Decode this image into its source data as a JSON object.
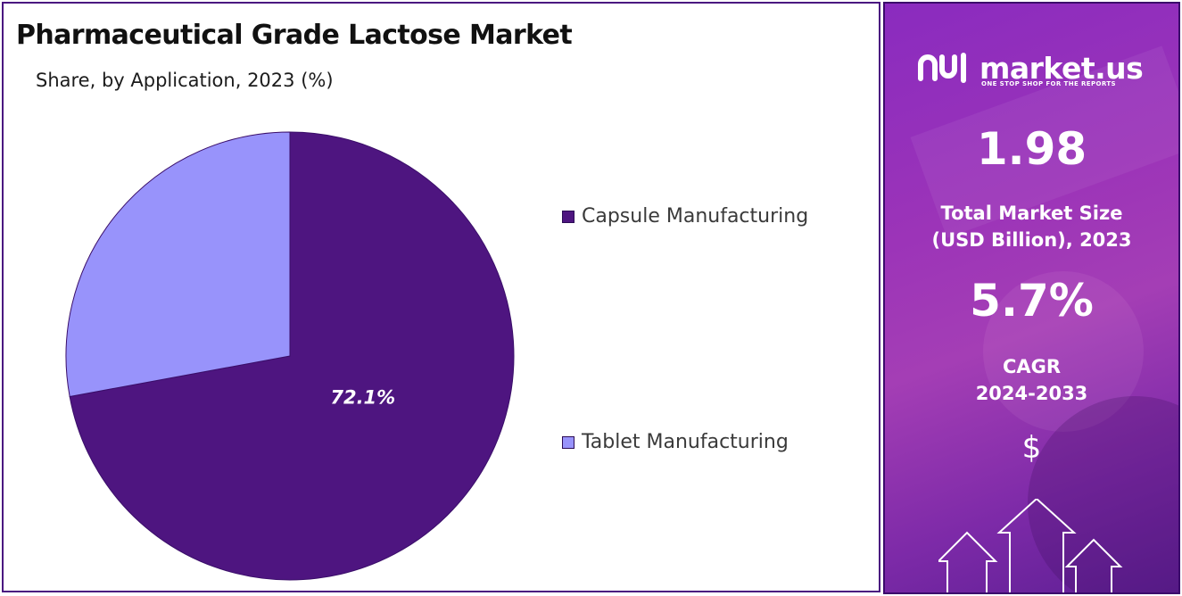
{
  "colors": {
    "capsule": "#4e1580",
    "tablet": "#9893fb",
    "pie_edge": "#3a0e69",
    "accent": "#8a2bbf"
  },
  "chart_data": {
    "type": "pie",
    "title": "Pharmaceutical Grade Lactose Market",
    "subtitle": "Share, by Application, 2023 (%)",
    "slices": [
      {
        "label": "Capsule Manufacturing",
        "value": 72.1,
        "display": "72.1%"
      },
      {
        "label": "Tablet Manufacturing",
        "value": 27.9
      }
    ],
    "legend_position": "right"
  },
  "sidebar": {
    "brand": "market.us",
    "tagline": "ONE STOP SHOP FOR THE REPORTS",
    "market_size_value": "1.98",
    "market_size_label_line1": "Total Market Size",
    "market_size_label_line2": "(USD Billion), 2023",
    "cagr_value": "5.7%",
    "cagr_label_line1": "CAGR",
    "cagr_label_line2": "2024-2033",
    "currency_symbol": "$",
    "icons": [
      "market-us-logo-icon",
      "dollar-icon",
      "growth-arrows-icon"
    ]
  }
}
